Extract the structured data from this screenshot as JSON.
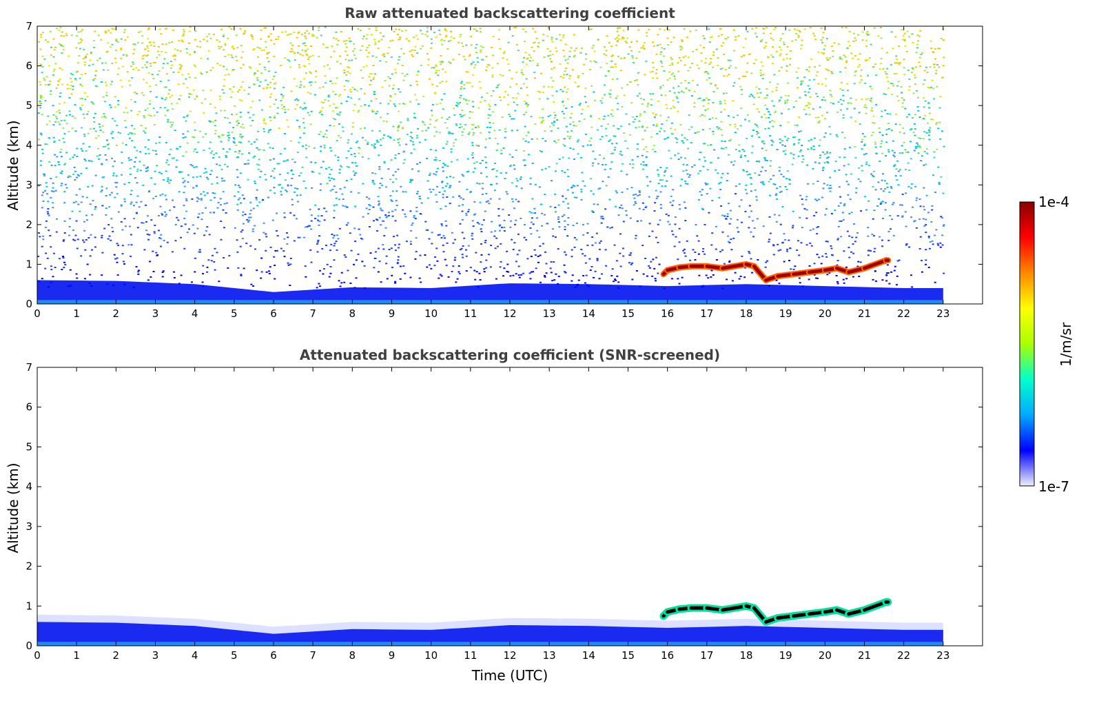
{
  "chart_data": [
    {
      "type": "heatmap",
      "title": "Raw attenuated backscattering coefficient",
      "xlabel": "",
      "ylabel": "Altitude (km)",
      "xlim": [
        0,
        24
      ],
      "ylim": [
        0,
        7
      ],
      "x_ticks": [
        "0",
        "1",
        "2",
        "3",
        "4",
        "5",
        "6",
        "7",
        "8",
        "9",
        "10",
        "11",
        "12",
        "13",
        "14",
        "15",
        "16",
        "17",
        "18",
        "19",
        "20",
        "21",
        "22",
        "23"
      ],
      "y_ticks": [
        "0",
        "1",
        "2",
        "3",
        "4",
        "5",
        "6",
        "7"
      ],
      "data_extent_x": [
        0,
        23
      ],
      "color_scale": "log",
      "noise": "high",
      "boundary_layer": {
        "time": [
          0,
          2,
          4,
          6,
          8,
          10,
          12,
          14,
          16,
          18,
          20,
          22,
          23
        ],
        "top_km": [
          0.6,
          0.58,
          0.5,
          0.3,
          0.42,
          0.4,
          0.52,
          0.5,
          0.45,
          0.5,
          0.45,
          0.4,
          0.4
        ]
      },
      "cloud_base": {
        "time": [
          15.9,
          16.0,
          16.3,
          16.6,
          17.0,
          17.4,
          18.0,
          18.2,
          18.5,
          18.8,
          19.2,
          19.6,
          20.0,
          20.3,
          20.6,
          21.0,
          21.55,
          21.6
        ],
        "altitude_km": [
          0.75,
          0.85,
          0.92,
          0.95,
          0.95,
          0.9,
          1.0,
          0.95,
          0.6,
          0.7,
          0.75,
          0.8,
          0.85,
          0.9,
          0.8,
          0.9,
          1.1,
          1.1
        ]
      }
    },
    {
      "type": "heatmap",
      "title": "Attenuated backscattering coefficient (SNR-screened)",
      "xlabel": "Time (UTC)",
      "ylabel": "Altitude (km)",
      "xlim": [
        0,
        24
      ],
      "ylim": [
        0,
        7
      ],
      "x_ticks": [
        "0",
        "1",
        "2",
        "3",
        "4",
        "5",
        "6",
        "7",
        "8",
        "9",
        "10",
        "11",
        "12",
        "13",
        "14",
        "15",
        "16",
        "17",
        "18",
        "19",
        "20",
        "21",
        "22",
        "23"
      ],
      "y_ticks": [
        "0",
        "1",
        "2",
        "3",
        "4",
        "5",
        "6",
        "7"
      ],
      "data_extent_x": [
        0,
        23
      ],
      "color_scale": "log",
      "noise": "screened",
      "boundary_layer": {
        "time": [
          0,
          2,
          4,
          6,
          8,
          10,
          12,
          14,
          16,
          18,
          20,
          22,
          23
        ],
        "top_km": [
          0.6,
          0.58,
          0.5,
          0.3,
          0.42,
          0.4,
          0.52,
          0.5,
          0.45,
          0.5,
          0.45,
          0.4,
          0.4
        ]
      },
      "cloud_base": {
        "time": [
          15.9,
          16.0,
          16.3,
          16.6,
          17.0,
          17.4,
          18.0,
          18.2,
          18.5,
          18.8,
          19.2,
          19.6,
          20.0,
          20.3,
          20.6,
          21.0,
          21.55,
          21.6
        ],
        "altitude_km": [
          0.75,
          0.85,
          0.92,
          0.95,
          0.95,
          0.9,
          1.0,
          0.95,
          0.6,
          0.7,
          0.75,
          0.8,
          0.85,
          0.9,
          0.8,
          0.9,
          1.1,
          1.1
        ]
      }
    }
  ],
  "colorbar": {
    "max_label": "1e-4",
    "min_label": "1e-7",
    "unit_label": "1/m/sr",
    "colormap": "jet",
    "colors": [
      "#eeeeff",
      "#0000ff",
      "#00aaff",
      "#00ffcc",
      "#aaff00",
      "#ffff00",
      "#ff8800",
      "#ff0000",
      "#880000"
    ]
  }
}
